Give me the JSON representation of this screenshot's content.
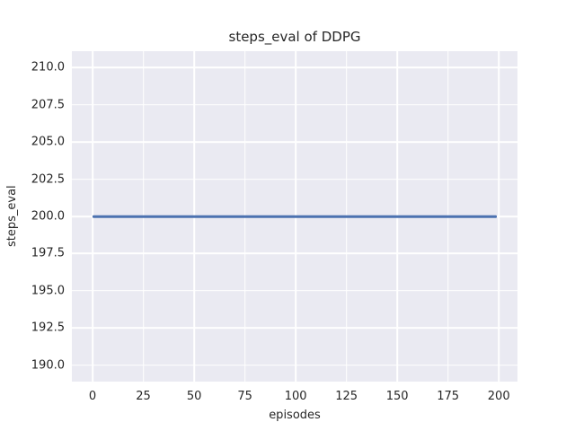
{
  "chart_data": {
    "type": "line",
    "title": "steps_eval of DDPG",
    "xlabel": "episodes",
    "ylabel": "steps_eval",
    "xlim": [
      -10.2,
      209.2
    ],
    "ylim": [
      188.9,
      211.1
    ],
    "grid": true,
    "legend": false,
    "x_ticks": [
      {
        "v": 0,
        "label": "0"
      },
      {
        "v": 25,
        "label": "25"
      },
      {
        "v": 50,
        "label": "50"
      },
      {
        "v": 75,
        "label": "75"
      },
      {
        "v": 100,
        "label": "100"
      },
      {
        "v": 125,
        "label": "125"
      },
      {
        "v": 150,
        "label": "150"
      },
      {
        "v": 175,
        "label": "175"
      },
      {
        "v": 200,
        "label": "200"
      }
    ],
    "y_ticks": [
      {
        "v": 190.0,
        "label": "190.0"
      },
      {
        "v": 192.5,
        "label": "192.5"
      },
      {
        "v": 195.0,
        "label": "195.0"
      },
      {
        "v": 197.5,
        "label": "197.5"
      },
      {
        "v": 200.0,
        "label": "200.0"
      },
      {
        "v": 202.5,
        "label": "202.5"
      },
      {
        "v": 205.0,
        "label": "205.0"
      },
      {
        "v": 207.5,
        "label": "207.5"
      },
      {
        "v": 210.0,
        "label": "210.0"
      }
    ],
    "series": [
      {
        "name": "steps_eval",
        "color": "#4C72B0",
        "x": [
          0,
          199
        ],
        "y": [
          200,
          200
        ]
      }
    ],
    "colors": {
      "figure_background": "#ffffff",
      "axes_background": "#EAEAF2",
      "grid": "#ffffff",
      "text": "#262626",
      "line": "#4C72B0"
    }
  }
}
